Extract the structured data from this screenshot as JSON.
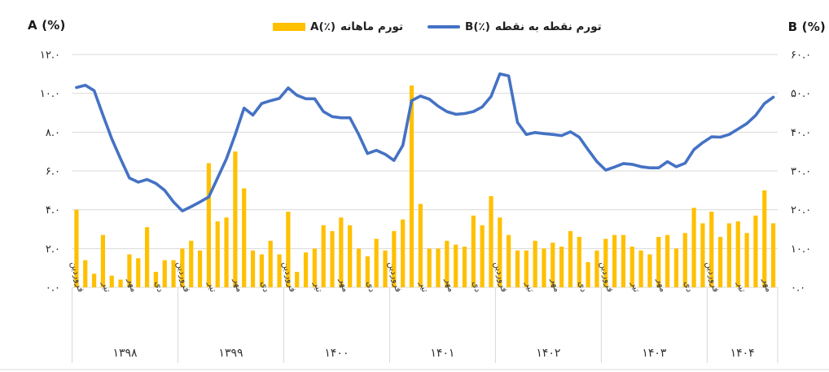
{
  "axes": {
    "left_title": "A (%)",
    "right_title": "B (%)"
  },
  "legend": [
    {
      "code": "A(٪)",
      "label": "تورم ماهانه",
      "swatch": "bar-swatch",
      "color": "#FFC000"
    },
    {
      "code": "B(٪)",
      "label": "تورم نقطه به نقطه",
      "swatch": "line-swatch",
      "color": "#4472C4"
    }
  ],
  "chart_data": {
    "type": "combo",
    "title": "",
    "legend_position": "top-center",
    "grid": "horizontal",
    "series": [
      {
        "name": "تورم ماهانه A(٪)",
        "type": "bar",
        "color": "#FFC000",
        "axis": "A"
      },
      {
        "name": "تورم نقطه به نقطه B(٪)",
        "type": "line",
        "color": "#4472C4",
        "axis": "B"
      }
    ],
    "axis_A": {
      "title": "A (%)",
      "min": 0,
      "max": 12,
      "step": 2,
      "tick_labels": [
        "۰.۰",
        "۲.۰",
        "۴.۰",
        "۶.۰",
        "۸.۰",
        "۱۰.۰",
        "۱۲.۰"
      ]
    },
    "axis_B": {
      "title": "B (%)",
      "min": 0,
      "max": 60,
      "step": 10,
      "tick_labels": [
        "۰.۰",
        "۱۰.۰",
        "۲۰.۰",
        "۳۰.۰",
        "۴۰.۰",
        "۵۰.۰",
        "۶۰.۰"
      ]
    },
    "quarter_labels": [
      "فروردین",
      "تیر",
      "مهر",
      "دی"
    ],
    "quarter_month_indices": [
      0,
      3,
      6,
      9
    ],
    "years": [
      {
        "label": "۱۳۹۸",
        "A": [
          4.0,
          1.4,
          0.7,
          2.7,
          0.6,
          0.4,
          1.7,
          1.5,
          3.1,
          0.8,
          1.4,
          1.4
        ],
        "B": [
          51.5,
          52.1,
          50.7,
          44.4,
          38.3,
          33.1,
          28.2,
          27.1,
          27.8,
          26.8,
          25.0,
          22.0
        ]
      },
      {
        "label": "۱۳۹۹",
        "A": [
          2.0,
          2.4,
          1.9,
          6.4,
          3.4,
          3.6,
          7.0,
          5.1,
          1.9,
          1.7,
          2.4,
          1.7
        ],
        "B": [
          19.7,
          20.8,
          22.0,
          23.3,
          28.2,
          33.1,
          39.4,
          46.2,
          44.4,
          47.4,
          48.1,
          48.7
        ]
      },
      {
        "label": "۱۴۰۰",
        "A": [
          3.9,
          0.8,
          1.8,
          2.0,
          3.2,
          2.9,
          3.6,
          3.2,
          2.0,
          1.6,
          2.5,
          1.9
        ],
        "B": [
          51.4,
          49.5,
          48.6,
          48.6,
          45.3,
          44.0,
          43.7,
          43.7,
          39.4,
          34.5,
          35.3,
          34.3
        ]
      },
      {
        "label": "۱۴۰۱",
        "A": [
          2.9,
          3.5,
          10.4,
          4.3,
          2.0,
          2.0,
          2.4,
          2.2,
          2.1,
          3.7,
          3.2,
          4.7
        ],
        "B": [
          32.7,
          36.6,
          48.1,
          49.3,
          48.5,
          46.7,
          45.3,
          44.6,
          44.8,
          45.3,
          46.5,
          49.2
        ]
      },
      {
        "label": "۱۴۰۲",
        "A": [
          3.6,
          2.7,
          1.9,
          1.9,
          2.4,
          2.0,
          2.3,
          2.1,
          2.9,
          2.6,
          1.3,
          1.9
        ],
        "B": [
          55.0,
          54.5,
          42.5,
          39.4,
          39.9,
          39.6,
          39.4,
          39.1,
          40.1,
          38.7,
          35.5,
          32.4
        ]
      },
      {
        "label": "۱۴۰۳",
        "A": [
          2.5,
          2.7,
          2.7,
          2.1,
          1.9,
          1.7,
          2.6,
          2.7,
          2.0,
          2.8,
          4.1,
          3.3
        ],
        "B": [
          30.2,
          31.0,
          31.9,
          31.7,
          31.1,
          30.8,
          30.8,
          32.4,
          31.1,
          32.0,
          35.5,
          37.3
        ]
      },
      {
        "label": "۱۴۰۴",
        "A": [
          3.9,
          2.6,
          3.3,
          3.4,
          2.8,
          3.7,
          5.0,
          3.3
        ],
        "B": [
          38.8,
          38.7,
          39.4,
          40.8,
          42.2,
          44.3,
          47.4,
          49.0
        ]
      }
    ],
    "colors": {
      "grid": "#D9D9D9",
      "divider": "#D9D9D9",
      "bottom_border": "#E4E4E4",
      "tick_text": "#262626",
      "month_text": "#3a3a3a",
      "year_text": "#303030"
    }
  }
}
